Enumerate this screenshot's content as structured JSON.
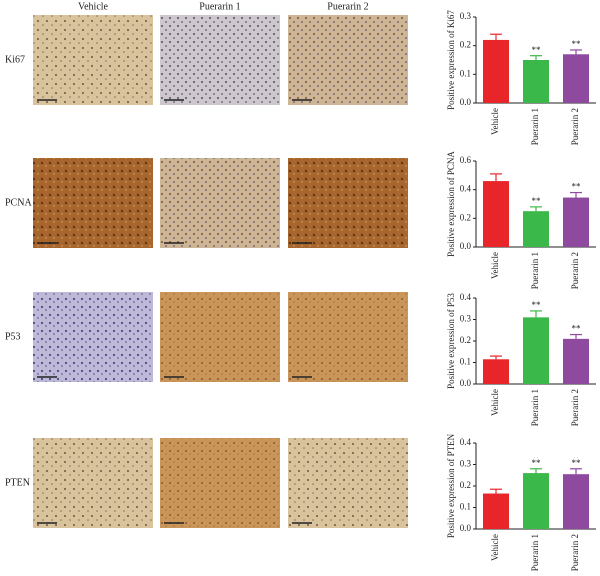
{
  "panels": {
    "columns": [
      "Vehicle",
      "Puerarin 1",
      "Puerarin 2"
    ],
    "rows": [
      "Ki67",
      "PCNA",
      "P53",
      "PTEN"
    ]
  },
  "chart_data": [
    {
      "type": "bar",
      "ylabel": "Positive expression of Ki67",
      "categories": [
        "Vehicle",
        "Puerarin 1",
        "Puerarin 2"
      ],
      "values": [
        0.22,
        0.15,
        0.17
      ],
      "errors": [
        0.02,
        0.015,
        0.015
      ],
      "value_annotations": [
        null,
        "**",
        "**"
      ],
      "colors": [
        "#e8262a",
        "#3bb84a",
        "#8e4a9e"
      ],
      "ylim": [
        0,
        0.3
      ],
      "yticks": [
        {
          "value": 0,
          "label": "0.0"
        },
        0.1,
        0.2,
        0.3
      ]
    },
    {
      "type": "bar",
      "ylabel": "Positive expression of PCNA",
      "categories": [
        "Vehicle",
        "Puerarin 1",
        "Puerarin 2"
      ],
      "values": [
        0.46,
        0.25,
        0.345
      ],
      "errors": [
        0.05,
        0.03,
        0.035
      ],
      "value_annotations": [
        null,
        "**",
        "**"
      ],
      "colors": [
        "#e8262a",
        "#3bb84a",
        "#8e4a9e"
      ],
      "ylim": [
        0,
        0.6
      ],
      "yticks": [
        {
          "value": 0,
          "label": "0.0"
        },
        0.2,
        0.4,
        0.6
      ]
    },
    {
      "type": "bar",
      "ylabel": "Positive expression of P53",
      "categories": [
        "Vehicle",
        "Puerarin 1",
        "Puerarin 2"
      ],
      "values": [
        0.115,
        0.31,
        0.21
      ],
      "errors": [
        0.015,
        0.03,
        0.02
      ],
      "value_annotations": [
        null,
        "**",
        "**"
      ],
      "colors": [
        "#e8262a",
        "#3bb84a",
        "#8e4a9e"
      ],
      "ylim": [
        0,
        0.4
      ],
      "yticks": [
        {
          "value": 0,
          "label": "0.0"
        },
        0.1,
        0.2,
        0.3,
        0.4
      ]
    },
    {
      "type": "bar",
      "ylabel": "Positive expression of PTEN",
      "categories": [
        "Vehicle",
        "Puerarin 1",
        "Puerarin 2"
      ],
      "values": [
        0.165,
        0.26,
        0.255
      ],
      "errors": [
        0.02,
        0.02,
        0.025
      ],
      "value_annotations": [
        null,
        "**",
        "**"
      ],
      "colors": [
        "#e8262a",
        "#3bb84a",
        "#8e4a9e"
      ],
      "ylim": [
        0,
        0.4
      ],
      "yticks": [
        {
          "value": 0,
          "label": "0.0"
        },
        0.1,
        0.2,
        0.3,
        0.4
      ]
    }
  ]
}
